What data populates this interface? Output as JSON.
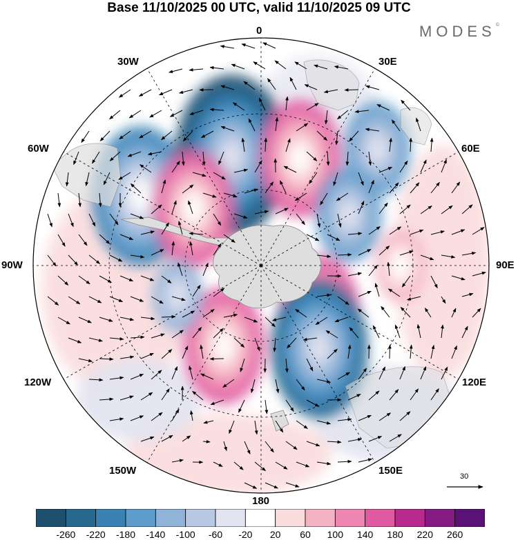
{
  "title": "Base 11/10/2025 00 UTC, valid 11/10/2025 09 UTC",
  "logo": "MODES",
  "logo_mark": "©",
  "longitude_labels": {
    "lon_0": "0",
    "lon_30e": "30E",
    "lon_60e": "60E",
    "lon_90e": "90E",
    "lon_120e": "120E",
    "lon_150e": "150E",
    "lon_180": "180",
    "lon_150w": "150W",
    "lon_120w": "120W",
    "lon_90w": "90W",
    "lon_60w": "60W",
    "lon_30w": "30W"
  },
  "vector_reference": {
    "value": "30"
  },
  "colorbar": {
    "ticks": [
      "-260",
      "-220",
      "-180",
      "-140",
      "-100",
      "-60",
      "-20",
      "20",
      "60",
      "100",
      "140",
      "180",
      "220",
      "260"
    ],
    "colors": [
      "#1e4f6f",
      "#27688f",
      "#3a82b4",
      "#5e9ccb",
      "#8fb4d8",
      "#b9c8e2",
      "#e2e3f0",
      "#ffffff",
      "#fbdcdd",
      "#f3b3c3",
      "#ee86b2",
      "#e05aa2",
      "#b82a8d",
      "#871b84",
      "#5a1276"
    ]
  },
  "colors": {
    "pole_ocean": "#ffffff",
    "land": "#dedede",
    "grid": "#000000"
  },
  "anomaly_centers": [
    {
      "id": "blue-60w",
      "lon": -60,
      "lat": -35,
      "value": -200
    },
    {
      "id": "blue-15w",
      "lon": -15,
      "lat": -45,
      "value": -260
    },
    {
      "id": "pink-20e",
      "lon": 20,
      "lat": -45,
      "value": 180
    },
    {
      "id": "pink-50w",
      "lon": -50,
      "lat": -55,
      "value": 180
    },
    {
      "id": "blue-45e",
      "lon": 45,
      "lat": -25,
      "value": -140
    },
    {
      "id": "blue-60e",
      "lon": 60,
      "lat": -50,
      "value": -140
    },
    {
      "id": "pink-90e",
      "lon": 90,
      "lat": -35,
      "value": 100
    },
    {
      "id": "pink-130e",
      "lon": 130,
      "lat": -60,
      "value": 160
    },
    {
      "id": "blue-145e",
      "lon": 145,
      "lat": -50,
      "value": -220
    },
    {
      "id": "pink-150w",
      "lon": -155,
      "lat": -55,
      "value": 180
    },
    {
      "id": "blue-110w",
      "lon": -110,
      "lat": -55,
      "value": -100
    }
  ]
}
